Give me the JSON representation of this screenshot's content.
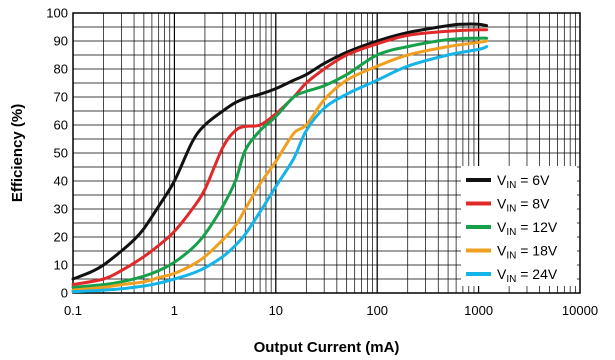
{
  "chart_data": {
    "type": "line",
    "xlabel": "Output Current (mA)",
    "ylabel": "Efficiency (%)",
    "xscale": "log",
    "xlim": [
      0.1,
      10000
    ],
    "ylim": [
      0,
      100
    ],
    "grid": true,
    "legend_position": "right-center",
    "x_ticks": [
      "0.1",
      "1",
      "10",
      "100",
      "1000",
      "10000"
    ],
    "y_ticks": [
      "0",
      "10",
      "20",
      "30",
      "40",
      "50",
      "60",
      "70",
      "80",
      "90",
      "100"
    ],
    "series": [
      {
        "name": "V",
        "sub": "IN",
        "suffix": " = 6V",
        "color": "#111111",
        "x": [
          0.1,
          0.15,
          0.2,
          0.3,
          0.4,
          0.5,
          0.7,
          1,
          1.5,
          2,
          3,
          4,
          5,
          7,
          10,
          15,
          20,
          30,
          50,
          100,
          200,
          500,
          700,
          1000,
          1200
        ],
        "y": [
          5,
          7.5,
          10,
          15,
          19,
          23,
          31,
          40,
          54,
          60,
          65,
          68,
          69.5,
          71,
          73,
          76,
          78,
          82,
          86,
          90,
          93,
          95.5,
          96,
          96,
          95.5
        ]
      },
      {
        "name": "V",
        "sub": "IN",
        "suffix": " = 8V",
        "color": "#e02a2a",
        "x": [
          0.1,
          0.2,
          0.3,
          0.5,
          0.7,
          1,
          1.5,
          2,
          3,
          4,
          5,
          7,
          10,
          15,
          20,
          30,
          50,
          100,
          200,
          500,
          1000,
          1200
        ],
        "y": [
          3,
          5,
          8,
          13,
          17,
          22,
          30,
          37,
          52,
          58,
          59.5,
          60,
          64,
          70,
          75,
          80,
          85,
          89,
          92,
          93.5,
          94,
          94
        ]
      },
      {
        "name": "V",
        "sub": "IN",
        "suffix": " = 12V",
        "color": "#16a04a",
        "x": [
          0.1,
          0.2,
          0.3,
          0.5,
          0.7,
          1,
          1.5,
          2,
          3,
          4,
          5,
          7,
          10,
          15,
          20,
          30,
          50,
          100,
          200,
          500,
          1000,
          1200
        ],
        "y": [
          2,
          3,
          4,
          6,
          8,
          11,
          16,
          21,
          31,
          40,
          51,
          58,
          63,
          70,
          72,
          74,
          78,
          85,
          88,
          90.5,
          91,
          91
        ]
      },
      {
        "name": "V",
        "sub": "IN",
        "suffix": " = 18V",
        "color": "#f0a020",
        "x": [
          0.1,
          0.2,
          0.3,
          0.5,
          0.7,
          1,
          1.5,
          2,
          3,
          4,
          5,
          7,
          10,
          15,
          20,
          30,
          50,
          100,
          200,
          500,
          1000,
          1200
        ],
        "y": [
          1,
          2,
          3,
          4,
          5.5,
          7,
          10,
          13,
          19,
          24,
          30,
          39,
          47,
          57,
          60,
          69,
          76,
          81,
          85,
          88,
          89.5,
          90
        ]
      },
      {
        "name": "V",
        "sub": "IN",
        "suffix": " = 24V",
        "color": "#15b4e6",
        "x": [
          0.1,
          0.2,
          0.3,
          0.5,
          0.7,
          1,
          1.5,
          2,
          3,
          4,
          5,
          7,
          10,
          15,
          20,
          30,
          50,
          100,
          200,
          500,
          1000,
          1200
        ],
        "y": [
          0.5,
          1,
          1.5,
          2.5,
          3.5,
          5,
          7,
          9,
          13,
          17,
          21,
          29,
          38,
          48,
          58,
          66,
          71,
          76,
          81,
          85,
          87,
          88
        ]
      }
    ]
  }
}
